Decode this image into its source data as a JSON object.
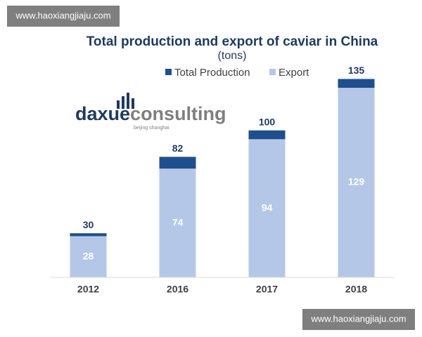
{
  "watermark_top": "www.haoxiangjiaju.com",
  "watermark_bottom": "www.haoxiangjiaju.com",
  "logo": {
    "part1": "daxue",
    "part2": "consulting",
    "tagline": "beijing shanghai"
  },
  "chart_data": {
    "type": "bar",
    "title": "Total production and export of caviar in China",
    "subtitle": "(tons)",
    "categories": [
      "2012",
      "2016",
      "2017",
      "2018"
    ],
    "series": [
      {
        "name": "Total Production",
        "color": "#1f4e8c",
        "values": [
          30,
          82,
          100,
          135
        ]
      },
      {
        "name": "Export",
        "color": "#b4c7e7",
        "values": [
          28,
          74,
          94,
          129
        ]
      }
    ],
    "ylim": [
      0,
      140
    ]
  }
}
